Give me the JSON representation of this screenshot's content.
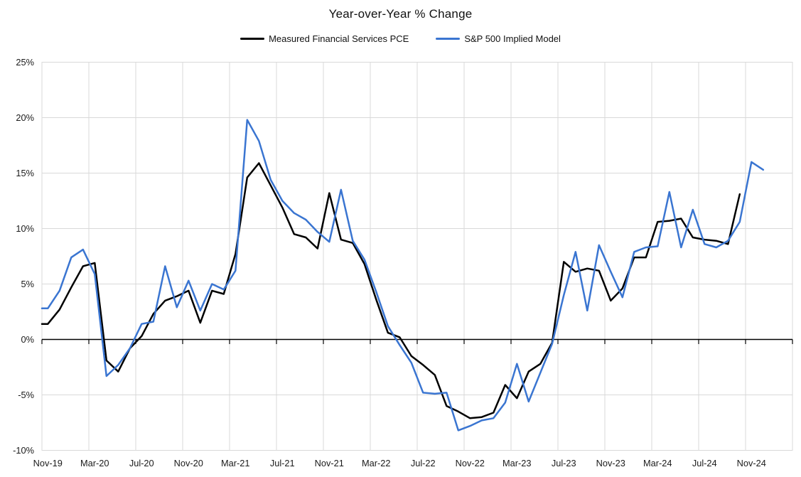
{
  "chart": {
    "title": "Year-over-Year % Change",
    "background_color": "#FFFFFF",
    "gridline_color": "#D9D9D9",
    "zero_axis_color": "#000000"
  },
  "chart_data": {
    "type": "line",
    "title": "Year-over-Year % Change",
    "xlabel": "",
    "ylabel": "",
    "ylim": [
      -10,
      25
    ],
    "ytick_step": 5,
    "grid": true,
    "legend_position": "top",
    "y_tick_labels": [
      "25%",
      "20%",
      "15%",
      "10%",
      "5%",
      "0%",
      "-5%",
      "-10%"
    ],
    "y_tick_values": [
      25,
      20,
      15,
      10,
      5,
      0,
      -5,
      -10
    ],
    "x_tick_labels": [
      "Nov-19",
      "Mar-20",
      "Jul-20",
      "Nov-20",
      "Mar-21",
      "Jul-21",
      "Nov-21",
      "Mar-22",
      "Jul-22",
      "Nov-22",
      "Mar-23",
      "Jul-23",
      "Nov-23",
      "Mar-24",
      "Jul-24",
      "Nov-24"
    ],
    "x_tick_interval_months": 4,
    "x": [
      "Nov-19",
      "Dec-19",
      "Jan-20",
      "Feb-20",
      "Mar-20",
      "Apr-20",
      "May-20",
      "Jun-20",
      "Jul-20",
      "Aug-20",
      "Sep-20",
      "Oct-20",
      "Nov-20",
      "Dec-20",
      "Jan-21",
      "Feb-21",
      "Mar-21",
      "Apr-21",
      "May-21",
      "Jun-21",
      "Jul-21",
      "Aug-21",
      "Sep-21",
      "Oct-21",
      "Nov-21",
      "Dec-21",
      "Jan-22",
      "Feb-22",
      "Mar-22",
      "Apr-22",
      "May-22",
      "Jun-22",
      "Jul-22",
      "Aug-22",
      "Sep-22",
      "Oct-22",
      "Nov-22",
      "Dec-22",
      "Jan-23",
      "Feb-23",
      "Mar-23",
      "Apr-23",
      "May-23",
      "Jun-23",
      "Jul-23",
      "Aug-23",
      "Sep-23",
      "Oct-23",
      "Nov-23",
      "Dec-23",
      "Jan-24",
      "Feb-24",
      "Mar-24",
      "Apr-24",
      "May-24",
      "Jun-24",
      "Jul-24",
      "Aug-24",
      "Sep-24",
      "Oct-24",
      "Nov-24",
      "Dec-24"
    ],
    "series": [
      {
        "name": "Measured Financial Services PCE",
        "color": "#000000",
        "values": [
          1.4,
          2.7,
          4.7,
          6.6,
          6.9,
          -1.9,
          -2.9,
          -0.8,
          0.3,
          2.3,
          3.5,
          3.9,
          4.4,
          1.5,
          4.4,
          4.1,
          7.7,
          14.6,
          15.9,
          13.9,
          11.9,
          9.5,
          9.2,
          8.2,
          13.2,
          9.0,
          8.7,
          6.8,
          3.6,
          0.6,
          0.2,
          -1.5,
          -2.3,
          -3.2,
          -6.0,
          -6.5,
          -7.1,
          -7.0,
          -6.6,
          -4.1,
          -5.3,
          -2.9,
          -2.2,
          -0.3,
          7.0,
          6.1,
          6.4,
          6.2,
          3.5,
          4.6,
          7.4,
          7.4,
          10.6,
          10.7,
          10.9,
          9.2,
          9.0,
          8.9,
          8.6,
          13.1,
          null,
          null
        ]
      },
      {
        "name": "S&P 500 Implied Model",
        "color": "#3A75D1",
        "values": [
          2.8,
          4.4,
          7.4,
          8.1,
          5.9,
          -3.3,
          -2.3,
          -0.8,
          1.4,
          1.6,
          6.6,
          2.9,
          5.3,
          2.6,
          5.0,
          4.5,
          6.2,
          19.8,
          17.9,
          14.4,
          12.5,
          11.4,
          10.8,
          9.7,
          8.8,
          13.5,
          8.9,
          7.2,
          4.3,
          1.2,
          -0.5,
          -2.1,
          -4.8,
          -4.9,
          -4.8,
          -8.2,
          -7.8,
          -7.3,
          -7.1,
          -5.7,
          -2.2,
          -5.6,
          -3.0,
          -0.4,
          4.0,
          7.9,
          2.6,
          8.5,
          6.1,
          3.8,
          7.9,
          8.3,
          8.4,
          13.3,
          8.3,
          11.7,
          8.6,
          8.3,
          8.9,
          10.6,
          16.0,
          15.3
        ]
      }
    ]
  }
}
